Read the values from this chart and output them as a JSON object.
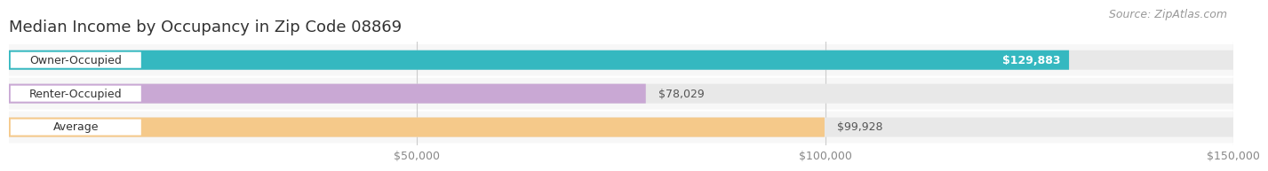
{
  "title": "Median Income by Occupancy in Zip Code 08869",
  "source": "Source: ZipAtlas.com",
  "categories": [
    "Owner-Occupied",
    "Renter-Occupied",
    "Average"
  ],
  "values": [
    129883,
    78029,
    99928
  ],
  "bar_colors": [
    "#35b8c0",
    "#c9a8d4",
    "#f5c98a"
  ],
  "value_labels": [
    "$129,883",
    "$78,029",
    "$99,928"
  ],
  "value_label_inside": [
    true,
    false,
    false
  ],
  "xlim": [
    0,
    150000
  ],
  "xticks": [
    50000,
    100000,
    150000
  ],
  "xtick_labels": [
    "$50,000",
    "$100,000",
    "$150,000"
  ],
  "background_color": "#ffffff",
  "bar_bg_color": "#e8e8e8",
  "bar_row_bg": "#f5f5f5",
  "title_fontsize": 13,
  "source_fontsize": 9,
  "label_fontsize": 9,
  "value_fontsize": 9,
  "tick_fontsize": 9
}
